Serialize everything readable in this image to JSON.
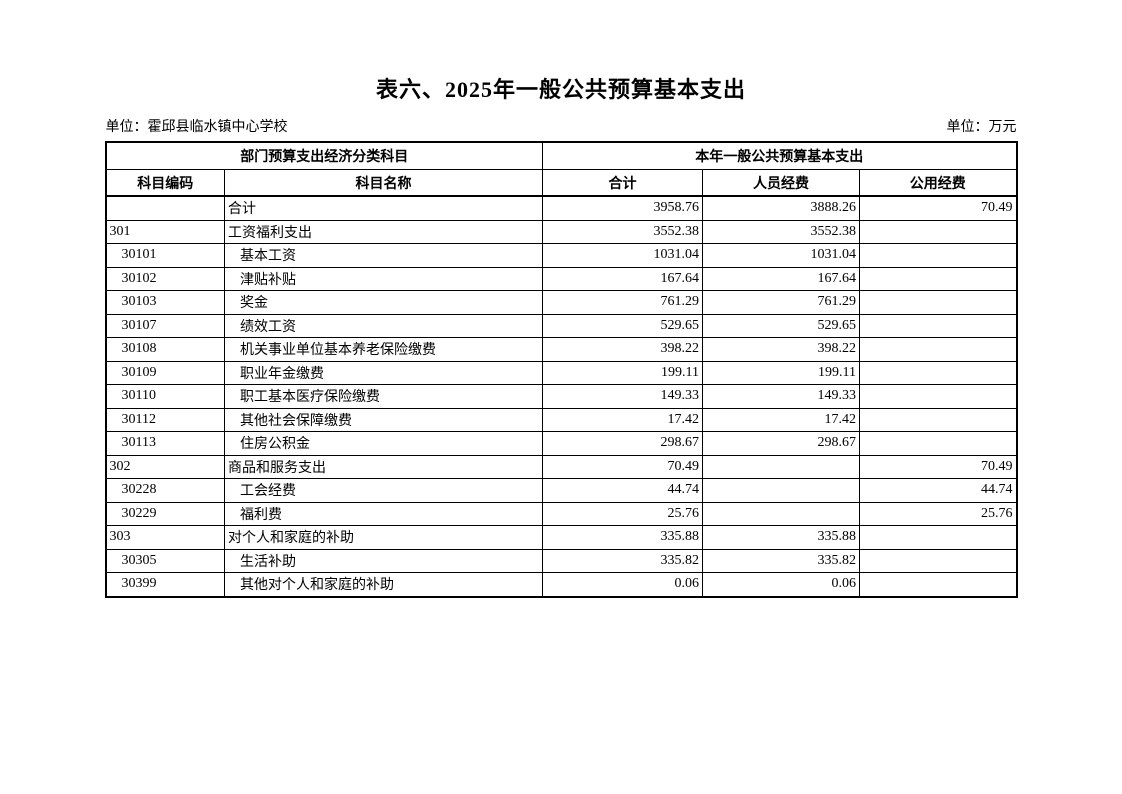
{
  "page": {
    "title": "表六、2025年一般公共预算基本支出",
    "unit_left": "单位：霍邱县临水镇中心学校",
    "unit_right": "单位：万元"
  },
  "table": {
    "group_headers": {
      "left": "部门预算支出经济分类科目",
      "right": "本年一般公共预算基本支出"
    },
    "columns": {
      "code": "科目编码",
      "name": "科目名称",
      "total": "合计",
      "personnel": "人员经费",
      "public": "公用经费"
    },
    "rows": [
      {
        "code": "",
        "name": "合计",
        "total": "3958.76",
        "personnel": "3888.26",
        "public": "70.49",
        "indent": false
      },
      {
        "code": "301",
        "name": "工资福利支出",
        "total": "3552.38",
        "personnel": "3552.38",
        "public": "",
        "indent": false
      },
      {
        "code": "30101",
        "name": "基本工资",
        "total": "1031.04",
        "personnel": "1031.04",
        "public": "",
        "indent": true
      },
      {
        "code": "30102",
        "name": "津贴补贴",
        "total": "167.64",
        "personnel": "167.64",
        "public": "",
        "indent": true
      },
      {
        "code": "30103",
        "name": "奖金",
        "total": "761.29",
        "personnel": "761.29",
        "public": "",
        "indent": true
      },
      {
        "code": "30107",
        "name": "绩效工资",
        "total": "529.65",
        "personnel": "529.65",
        "public": "",
        "indent": true
      },
      {
        "code": "30108",
        "name": "机关事业单位基本养老保险缴费",
        "total": "398.22",
        "personnel": "398.22",
        "public": "",
        "indent": true
      },
      {
        "code": "30109",
        "name": "职业年金缴费",
        "total": "199.11",
        "personnel": "199.11",
        "public": "",
        "indent": true
      },
      {
        "code": "30110",
        "name": "职工基本医疗保险缴费",
        "total": "149.33",
        "personnel": "149.33",
        "public": "",
        "indent": true
      },
      {
        "code": "30112",
        "name": "其他社会保障缴费",
        "total": "17.42",
        "personnel": "17.42",
        "public": "",
        "indent": true
      },
      {
        "code": "30113",
        "name": "住房公积金",
        "total": "298.67",
        "personnel": "298.67",
        "public": "",
        "indent": true
      },
      {
        "code": "302",
        "name": "商品和服务支出",
        "total": "70.49",
        "personnel": "",
        "public": "70.49",
        "indent": false
      },
      {
        "code": "30228",
        "name": "工会经费",
        "total": "44.74",
        "personnel": "",
        "public": "44.74",
        "indent": true
      },
      {
        "code": "30229",
        "name": "福利费",
        "total": "25.76",
        "personnel": "",
        "public": "25.76",
        "indent": true
      },
      {
        "code": "303",
        "name": "对个人和家庭的补助",
        "total": "335.88",
        "personnel": "335.88",
        "public": "",
        "indent": false
      },
      {
        "code": "30305",
        "name": "生活补助",
        "total": "335.82",
        "personnel": "335.82",
        "public": "",
        "indent": true
      },
      {
        "code": "30399",
        "name": "其他对个人和家庭的补助",
        "total": "0.06",
        "personnel": "0.06",
        "public": "",
        "indent": true
      }
    ]
  }
}
